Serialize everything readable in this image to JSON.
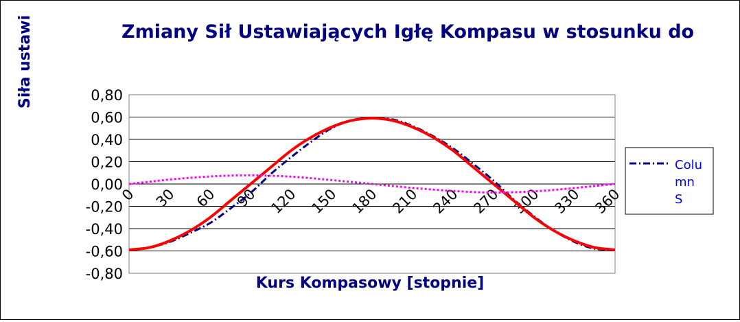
{
  "chart_data": {
    "type": "line",
    "title": "Zmiany Sił Ustawiających Igłę Kompasu w stosunku do",
    "xlabel": "Kurs Kompasowy  [stopnie]",
    "ylabel": "Siła ustawi",
    "ylim": [
      -0.8,
      0.8
    ],
    "xlim": [
      0,
      360
    ],
    "y_ticks": [
      "0,80",
      "0,60",
      "0,40",
      "0,20",
      "0,00",
      "-0,20",
      "-0,40",
      "-0,60",
      "-0,80"
    ],
    "x_ticks": [
      "0",
      "30",
      "60",
      "90",
      "120",
      "150",
      "180",
      "210",
      "240",
      "270",
      "300",
      "330",
      "360"
    ],
    "grid": true,
    "legend_position": "right",
    "legend_label_lines": [
      "Colu",
      "mn",
      "S"
    ],
    "series": [
      {
        "name": "Column S",
        "color": "#000080",
        "style": "dash-dot",
        "x": [
          0,
          15,
          30,
          45,
          60,
          75,
          90,
          105,
          120,
          135,
          150,
          165,
          180,
          195,
          210,
          225,
          240,
          255,
          270,
          285,
          300,
          315,
          330,
          345,
          360
        ],
        "values": [
          -0.59,
          -0.57,
          -0.52,
          -0.44,
          -0.35,
          -0.22,
          -0.08,
          0.09,
          0.24,
          0.38,
          0.5,
          0.57,
          0.59,
          0.58,
          0.52,
          0.43,
          0.32,
          0.18,
          0.03,
          -0.14,
          -0.29,
          -0.42,
          -0.52,
          -0.58,
          -0.59
        ]
      },
      {
        "color": "#ff0000",
        "style": "solid",
        "x": [
          0,
          15,
          30,
          45,
          60,
          75,
          90,
          105,
          120,
          135,
          150,
          165,
          180,
          195,
          210,
          225,
          240,
          255,
          270,
          285,
          300,
          315,
          330,
          345,
          360
        ],
        "values": [
          -0.59,
          -0.57,
          -0.51,
          -0.42,
          -0.3,
          -0.15,
          0.0,
          0.15,
          0.3,
          0.42,
          0.51,
          0.57,
          0.59,
          0.57,
          0.51,
          0.42,
          0.3,
          0.15,
          0.0,
          -0.15,
          -0.3,
          -0.42,
          -0.51,
          -0.57,
          -0.59
        ]
      },
      {
        "color": "#ff00ff",
        "style": "dotted",
        "x": [
          0,
          15,
          30,
          45,
          60,
          75,
          90,
          105,
          120,
          135,
          150,
          165,
          180,
          195,
          210,
          225,
          240,
          255,
          270,
          285,
          300,
          315,
          330,
          345,
          360
        ],
        "values": [
          0.0,
          0.02,
          0.04,
          0.055,
          0.068,
          0.075,
          0.078,
          0.074,
          0.066,
          0.052,
          0.035,
          0.018,
          0.0,
          -0.018,
          -0.035,
          -0.05,
          -0.063,
          -0.072,
          -0.077,
          -0.074,
          -0.066,
          -0.053,
          -0.036,
          -0.018,
          0.0
        ]
      }
    ]
  }
}
